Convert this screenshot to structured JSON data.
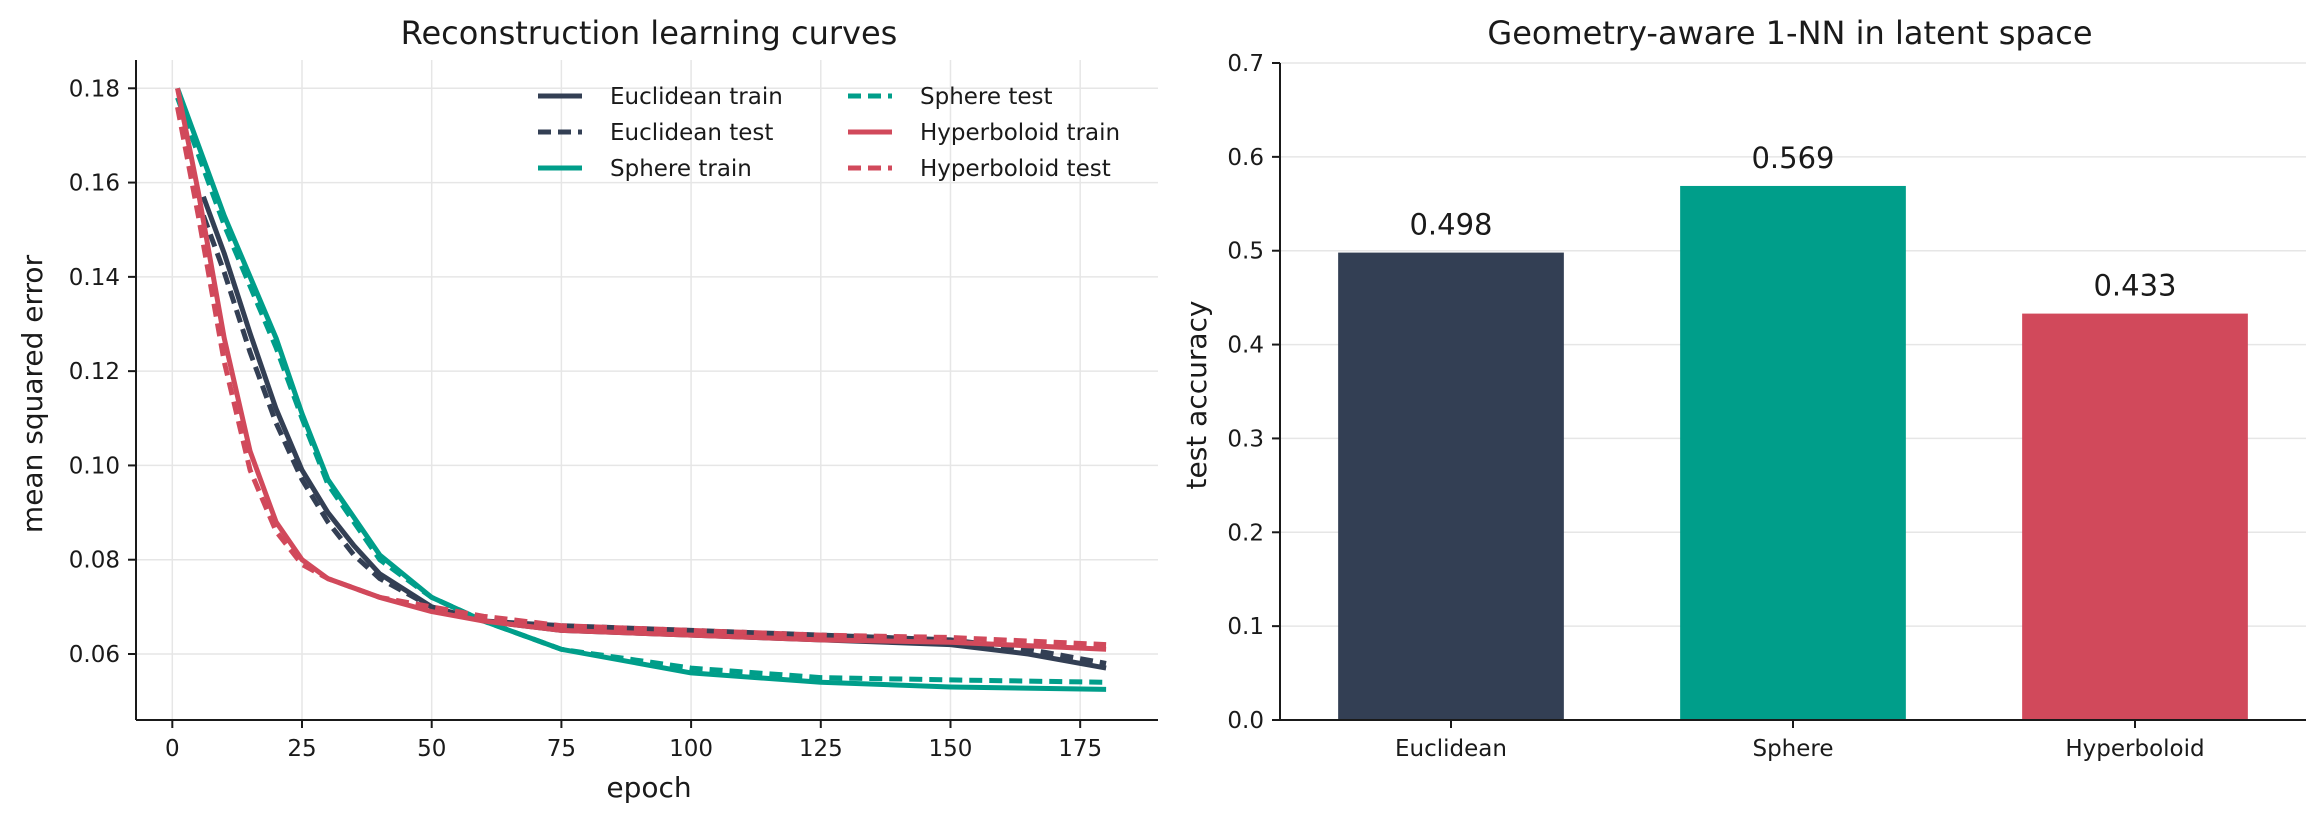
{
  "chart_data": [
    {
      "type": "line",
      "title": "Reconstruction learning curves",
      "xlabel": "epoch",
      "ylabel": "mean squared error",
      "xlim": [
        -7,
        190
      ],
      "ylim": [
        0.046,
        0.186
      ],
      "xticks": [
        0,
        25,
        50,
        75,
        100,
        125,
        150,
        175
      ],
      "yticks": [
        0.06,
        0.08,
        0.1,
        0.12,
        0.14,
        0.16,
        0.18
      ],
      "ytick_labels": [
        "0.06",
        "0.08",
        "0.10",
        "0.12",
        "0.14",
        "0.16",
        "0.18"
      ],
      "grid": true,
      "legend": {
        "placement": "top-right",
        "columns": 2
      },
      "colors": {
        "euclidean": "#333f54",
        "sphere": "#009e8a",
        "hyperboloid": "#d1495b"
      },
      "series": [
        {
          "name": "Euclidean train",
          "color": "#333f54",
          "dash": "solid",
          "x": [
            6,
            10,
            15,
            20,
            25,
            30,
            35,
            40,
            50,
            60,
            75,
            100,
            125,
            150,
            165,
            180
          ],
          "y": [
            0.157,
            0.145,
            0.128,
            0.112,
            0.099,
            0.09,
            0.083,
            0.077,
            0.07,
            0.067,
            0.065,
            0.064,
            0.063,
            0.062,
            0.06,
            0.057
          ]
        },
        {
          "name": "Euclidean test",
          "color": "#333f54",
          "dash": "dashed",
          "x": [
            6,
            10,
            15,
            20,
            25,
            30,
            35,
            40,
            50,
            60,
            75,
            100,
            125,
            150,
            165,
            180
          ],
          "y": [
            0.153,
            0.141,
            0.124,
            0.109,
            0.097,
            0.088,
            0.081,
            0.076,
            0.07,
            0.067,
            0.066,
            0.065,
            0.064,
            0.063,
            0.061,
            0.058
          ]
        },
        {
          "name": "Sphere train",
          "color": "#009e8a",
          "dash": "solid",
          "x": [
            1,
            10,
            20,
            25,
            30,
            40,
            50,
            60,
            75,
            100,
            125,
            150,
            180
          ],
          "y": [
            0.18,
            0.153,
            0.127,
            0.111,
            0.097,
            0.081,
            0.072,
            0.067,
            0.061,
            0.056,
            0.054,
            0.053,
            0.0525
          ]
        },
        {
          "name": "Sphere test",
          "color": "#009e8a",
          "dash": "dashed",
          "x": [
            1,
            10,
            20,
            25,
            30,
            40,
            50,
            60,
            75,
            100,
            125,
            150,
            180
          ],
          "y": [
            0.178,
            0.151,
            0.125,
            0.11,
            0.096,
            0.08,
            0.072,
            0.067,
            0.061,
            0.057,
            0.055,
            0.0545,
            0.054
          ]
        },
        {
          "name": "Hyperboloid train",
          "color": "#d1495b",
          "dash": "solid",
          "x": [
            1,
            5,
            10,
            15,
            20,
            25,
            30,
            40,
            50,
            60,
            75,
            100,
            125,
            150,
            180
          ],
          "y": [
            0.18,
            0.158,
            0.127,
            0.103,
            0.088,
            0.08,
            0.076,
            0.072,
            0.069,
            0.067,
            0.065,
            0.064,
            0.063,
            0.0625,
            0.061
          ]
        },
        {
          "name": "Hyperboloid test",
          "color": "#d1495b",
          "dash": "dashed",
          "x": [
            1,
            5,
            10,
            15,
            20,
            25,
            30,
            40,
            50,
            60,
            75,
            100,
            125,
            150,
            180
          ],
          "y": [
            0.176,
            0.153,
            0.122,
            0.099,
            0.086,
            0.079,
            0.076,
            0.072,
            0.07,
            0.068,
            0.066,
            0.065,
            0.064,
            0.0635,
            0.062
          ]
        }
      ]
    },
    {
      "type": "bar",
      "title": "Geometry-aware 1-NN in latent space",
      "xlabel": "",
      "ylabel": "test accuracy",
      "ylim": [
        0,
        0.7
      ],
      "yticks": [
        0.0,
        0.1,
        0.2,
        0.3,
        0.4,
        0.5,
        0.6,
        0.7
      ],
      "ytick_labels": [
        "0.0",
        "0.1",
        "0.2",
        "0.3",
        "0.4",
        "0.5",
        "0.6",
        "0.7"
      ],
      "grid": true,
      "categories": [
        "Euclidean",
        "Sphere",
        "Hyperboloid"
      ],
      "values": [
        0.498,
        0.569,
        0.433
      ],
      "value_labels": [
        "0.498",
        "0.569",
        "0.433"
      ],
      "colors": [
        "#333f54",
        "#009e8a",
        "#d1495b"
      ]
    }
  ]
}
